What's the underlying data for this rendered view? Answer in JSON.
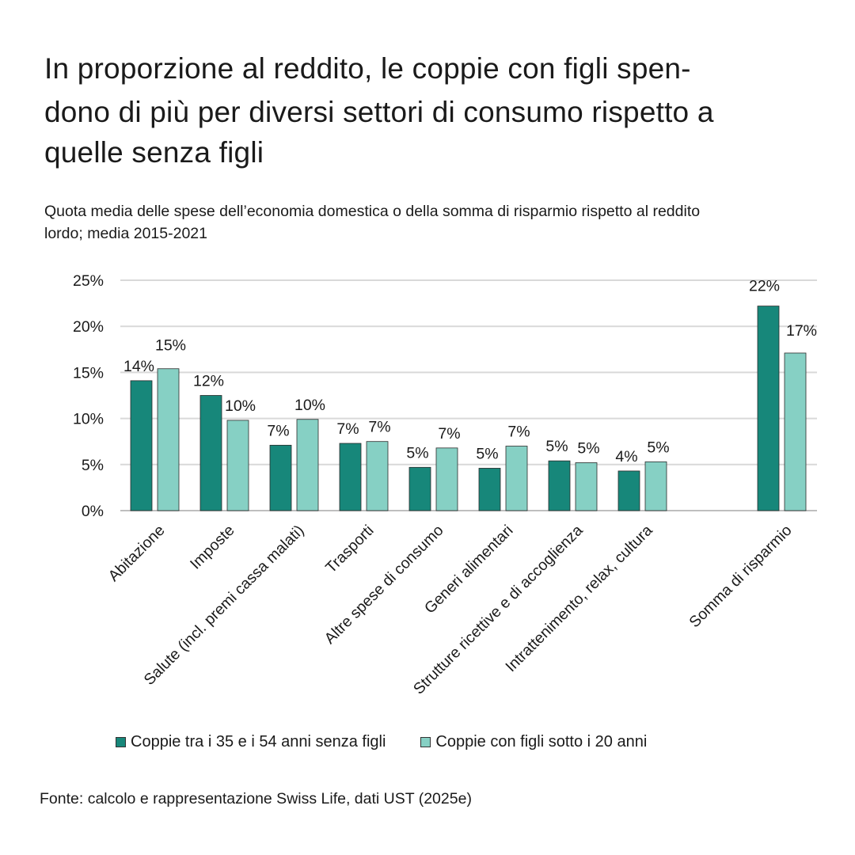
{
  "title_lines": [
    "In proporzione al reddito, le coppie con figli spen-",
    "dono di più per diversi settori di consumo rispetto a",
    "quelle senza figli"
  ],
  "subtitle_lines": [
    "Quota media delle spese dell’economia domestica o della somma di risparmio rispetto al reddito",
    "lordo; media 2015-2021"
  ],
  "source": "Fonte: calcolo e rappresentazione Swiss Life, dati UST (2025e)",
  "colors": {
    "series_1": "#17877a",
    "series_2": "#86d0c4",
    "grid": "#d9d9d9",
    "axis": "#bfbfbf"
  },
  "chart_data": {
    "type": "bar",
    "categories": [
      "Abitazione",
      "Imposte",
      "Salute (incl. premi cassa malati)",
      "Trasporti",
      "Altre spese di consumo",
      "Generi alimentari",
      "Strutture ricettive e di accoglienza",
      "Intrattenimento, relax, cultura",
      "",
      "Somma di risparmio"
    ],
    "series": [
      {
        "name": "Coppie tra i 35 e i 54 anni senza figli",
        "values": [
          14.1,
          12.5,
          7.1,
          7.3,
          4.7,
          4.6,
          5.4,
          4.3,
          null,
          22.2
        ],
        "labels": [
          "14%",
          "12%",
          "7%",
          "7%",
          "5%",
          "5%",
          "5%",
          "4%",
          "",
          "22%"
        ]
      },
      {
        "name": "Coppie con figli sotto i 20 anni",
        "values": [
          15.4,
          9.8,
          9.9,
          7.5,
          6.8,
          7.0,
          5.2,
          5.3,
          null,
          17.1
        ],
        "labels": [
          "15%",
          "10%",
          "10%",
          "7%",
          "7%",
          "7%",
          "5%",
          "5%",
          "",
          "17%"
        ]
      }
    ],
    "y_ticks": [
      "0%",
      "5%",
      "10%",
      "15%",
      "20%",
      "25%"
    ],
    "y_tick_values": [
      0,
      5,
      10,
      15,
      20,
      25
    ],
    "ylim": [
      0,
      25
    ],
    "grid": true,
    "legend_position": "bottom-left"
  }
}
